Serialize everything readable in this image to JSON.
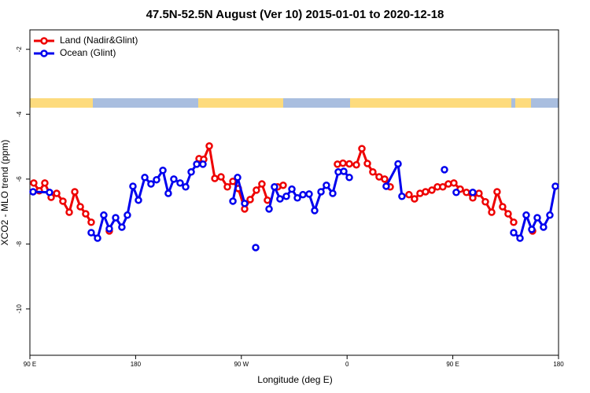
{
  "chart_data": {
    "type": "line",
    "title": "47.5N-52.5N August (Ver 10)   2015-01-01 to 2020-12-18",
    "x_label": "Longitude (deg E)",
    "y_label": "XCO2 - MLO trend (ppm)",
    "xlim": [
      90,
      540
    ],
    "ylim": [
      -11.43,
      -1.4
    ],
    "xticks": [
      {
        "value": 90,
        "label": "90 E"
      },
      {
        "value": 180,
        "label": "180"
      },
      {
        "value": 270,
        "label": "90 W"
      },
      {
        "value": 360,
        "label": "0"
      },
      {
        "value": 450,
        "label": "90 E"
      },
      {
        "value": 540,
        "label": "180"
      }
    ],
    "yticks": [
      -2,
      -4,
      -6,
      -8,
      -10
    ],
    "legend": "top-left",
    "series": [
      {
        "name": "Land (Nadir&Glint)",
        "color": "#ee0000",
        "x": [
          93.3,
          98.0,
          102.7,
          108.1,
          112.8,
          118.1,
          123.5,
          128.2,
          132.9,
          137.5,
          142.2,
          null,
          157.6,
          null,
          234.0,
          238.0,
          242.7,
          247.4,
          252.7,
          258.1,
          262.8,
          267.4,
          272.8,
          277.5,
          282.8,
          287.5,
          292.2,
          null,
          300.9,
          305.6,
          null,
          351.8,
          356.5,
          361.9,
          367.9,
          372.6,
          377.3,
          381.9,
          387.3,
          392.0,
          396.7,
          null,
          412.7,
          417.4,
          422.1,
          426.8,
          432.2,
          436.9,
          441.5,
          446.2,
          450.9,
          456.3,
          461.6,
          467.0,
          472.3,
          477.7,
          483.1,
          487.7,
          492.4,
          497.1,
          501.8,
          null,
          517.9
        ],
        "values": [
          -6.12,
          -6.36,
          -6.12,
          -6.56,
          -6.44,
          -6.68,
          -7.02,
          -6.39,
          -6.85,
          -7.07,
          -7.33,
          null,
          -7.6,
          null,
          -5.37,
          -5.39,
          -4.98,
          -5.98,
          -5.93,
          -6.24,
          -6.07,
          -6.29,
          -6.92,
          -6.63,
          -6.34,
          -6.15,
          -6.65,
          null,
          -6.24,
          -6.19,
          null,
          -5.54,
          -5.51,
          -5.53,
          -5.56,
          -5.06,
          -5.52,
          -5.78,
          -5.93,
          -6.0,
          -6.24,
          null,
          -6.48,
          -6.61,
          -6.44,
          -6.39,
          -6.34,
          -6.24,
          -6.24,
          -6.15,
          -6.12,
          -6.31,
          -6.41,
          -6.58,
          -6.44,
          -6.7,
          -7.02,
          -6.39,
          -6.85,
          -7.07,
          -7.33,
          null,
          -7.6
        ]
      },
      {
        "name": "Ocean (Glint)",
        "color": "#0000ee",
        "x": [
          92.7,
          106.7,
          null,
          142.2,
          147.6,
          152.9,
          157.6,
          163.0,
          168.3,
          173.0,
          177.7,
          182.4,
          187.8,
          193.1,
          197.8,
          203.2,
          207.8,
          212.5,
          217.9,
          222.6,
          227.3,
          232.0,
          237.3,
          null,
          262.8,
          266.8,
          272.8,
          null,
          282.2,
          null,
          293.6,
          298.2,
          302.9,
          308.3,
          313.0,
          317.7,
          322.4,
          327.7,
          332.4,
          337.8,
          342.4,
          347.8,
          352.5,
          357.2,
          361.9,
          null,
          393.3,
          403.4,
          406.7,
          null,
          442.9,
          null,
          452.9,
          null,
          467.0,
          null,
          501.8,
          507.2,
          512.5,
          517.2,
          521.9,
          527.2,
          532.6,
          537.3
        ],
        "values": [
          -6.39,
          -6.41,
          null,
          -7.65,
          -7.82,
          -7.11,
          -7.53,
          -7.19,
          -7.48,
          -7.11,
          -6.22,
          -6.65,
          -5.95,
          -6.15,
          -6.02,
          -5.73,
          -6.44,
          -6.0,
          -6.12,
          -6.24,
          -5.78,
          -5.54,
          -5.54,
          null,
          -6.68,
          -5.95,
          -6.75,
          null,
          -8.11,
          null,
          -6.92,
          -6.24,
          -6.61,
          -6.53,
          -6.31,
          -6.58,
          -6.48,
          -6.46,
          -6.97,
          -6.39,
          -6.19,
          -6.44,
          -5.78,
          -5.76,
          -5.95,
          null,
          -6.22,
          -5.53,
          -6.53,
          null,
          -5.71,
          null,
          -6.41,
          null,
          -6.41,
          null,
          -7.65,
          -7.82,
          -7.11,
          -7.55,
          -7.19,
          -7.48,
          -7.11,
          -6.22
        ]
      }
    ]
  }
}
